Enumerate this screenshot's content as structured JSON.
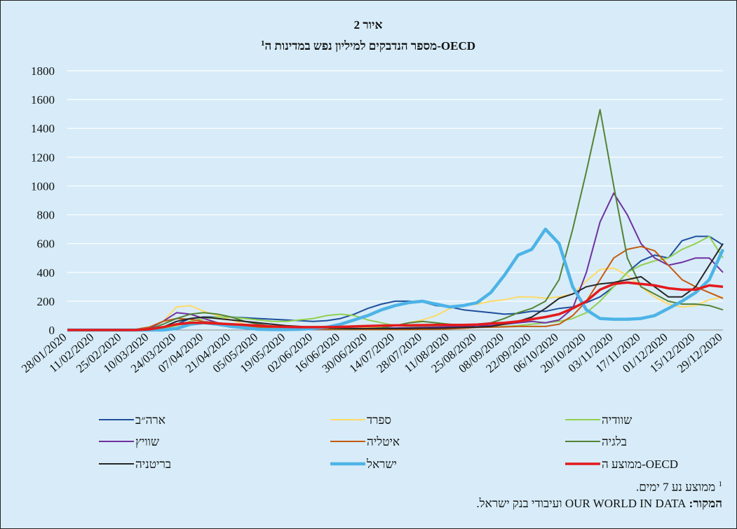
{
  "chart_data": {
    "type": "line",
    "title": "איור 2",
    "subtitle": "מספר הנדבקים למיליון נפש במדינות ה-OECD",
    "subtitle_note": "1",
    "footnote_marker": "1",
    "footnote": "ממוצע נע 7 ימים.",
    "source_label": "המקור:",
    "source_text": "OUR WORLD IN DATA ועיבודי בנק ישראל.",
    "categories": [
      "28/01/2020",
      null,
      "11/02/2020",
      null,
      "25/02/2020",
      null,
      "10/03/2020",
      null,
      "24/03/2020",
      null,
      "07/04/2020",
      null,
      "21/04/2020",
      null,
      "05/05/2020",
      null,
      "19/05/2020",
      null,
      "02/06/2020",
      null,
      "16/06/2020",
      null,
      "30/06/2020",
      null,
      "14/07/2020",
      null,
      "28/07/2020",
      null,
      "11/08/2020",
      null,
      "25/08/2020",
      null,
      "08/09/2020",
      null,
      "22/09/2020",
      null,
      "06/10/2020",
      null,
      "20/10/2020",
      null,
      "03/11/2020",
      null,
      "17/11/2020",
      null,
      "01/12/2020",
      null,
      "15/12/2020",
      null,
      "29/12/2020"
    ],
    "ylim": [
      0,
      1800
    ],
    "yticks": [
      0,
      200,
      400,
      600,
      800,
      1000,
      1200,
      1400,
      1600,
      1800
    ],
    "grid": true,
    "series": [
      {
        "name": "ארה״ב",
        "color": "#1f4e9c",
        "width": 2,
        "values": [
          0,
          0,
          0,
          0,
          0,
          0,
          0,
          10,
          40,
          80,
          90,
          90,
          90,
          85,
          80,
          75,
          70,
          65,
          60,
          65,
          80,
          110,
          150,
          180,
          200,
          200,
          195,
          170,
          160,
          140,
          130,
          120,
          110,
          115,
          130,
          130,
          150,
          160,
          190,
          230,
          300,
          400,
          480,
          520,
          500,
          620,
          650,
          650,
          590
        ]
      },
      {
        "name": "ספרד",
        "color": "#ffd966",
        "width": 2,
        "values": [
          0,
          0,
          0,
          0,
          0,
          0,
          10,
          60,
          160,
          170,
          130,
          100,
          70,
          40,
          25,
          15,
          10,
          8,
          7,
          7,
          8,
          10,
          15,
          20,
          30,
          50,
          70,
          100,
          150,
          170,
          180,
          200,
          210,
          230,
          230,
          220,
          230,
          250,
          340,
          420,
          430,
          380,
          300,
          230,
          180,
          160,
          170,
          210,
          230
        ]
      },
      {
        "name": "שוודיה",
        "color": "#92d050",
        "width": 2,
        "values": [
          0,
          0,
          0,
          0,
          0,
          0,
          0,
          10,
          30,
          60,
          80,
          90,
          90,
          80,
          70,
          60,
          60,
          70,
          80,
          100,
          110,
          100,
          70,
          50,
          30,
          25,
          25,
          25,
          25,
          20,
          20,
          20,
          25,
          30,
          40,
          50,
          60,
          80,
          120,
          200,
          300,
          400,
          450,
          480,
          500,
          560,
          600,
          650,
          500
        ]
      },
      {
        "name": "שוויץ",
        "color": "#7030a0",
        "width": 2,
        "values": [
          0,
          0,
          0,
          0,
          0,
          0,
          10,
          60,
          120,
          110,
          80,
          50,
          25,
          15,
          8,
          5,
          4,
          4,
          4,
          4,
          5,
          8,
          10,
          12,
          14,
          16,
          18,
          20,
          22,
          25,
          30,
          30,
          40,
          50,
          60,
          50,
          70,
          150,
          400,
          750,
          950,
          800,
          600,
          500,
          450,
          470,
          500,
          500,
          400
        ]
      },
      {
        "name": "איטליה",
        "color": "#c55a11",
        "width": 2,
        "values": [
          0,
          0,
          0,
          0,
          0,
          5,
          20,
          60,
          80,
          75,
          60,
          50,
          40,
          30,
          20,
          12,
          8,
          6,
          5,
          4,
          4,
          4,
          4,
          4,
          4,
          4,
          5,
          6,
          8,
          12,
          18,
          20,
          22,
          25,
          25,
          25,
          40,
          100,
          200,
          350,
          500,
          560,
          580,
          550,
          450,
          350,
          300,
          260,
          220
        ]
      },
      {
        "name": "בלגיה",
        "color": "#548235",
        "width": 2,
        "values": [
          0,
          0,
          0,
          0,
          0,
          0,
          5,
          40,
          80,
          110,
          120,
          110,
          90,
          60,
          40,
          25,
          20,
          20,
          15,
          10,
          8,
          8,
          10,
          15,
          30,
          50,
          60,
          50,
          40,
          35,
          40,
          50,
          80,
          120,
          150,
          200,
          350,
          700,
          1100,
          1530,
          1000,
          500,
          300,
          250,
          200,
          180,
          180,
          170,
          140
        ]
      },
      {
        "name": "בריטניה",
        "color": "#262626",
        "width": 2,
        "values": [
          0,
          0,
          0,
          0,
          0,
          0,
          5,
          20,
          60,
          80,
          90,
          80,
          70,
          60,
          50,
          40,
          30,
          25,
          20,
          15,
          12,
          10,
          10,
          10,
          10,
          10,
          12,
          12,
          15,
          18,
          20,
          25,
          40,
          60,
          90,
          150,
          220,
          250,
          300,
          320,
          330,
          350,
          370,
          300,
          230,
          230,
          300,
          450,
          600
        ]
      },
      {
        "name": "ישראל",
        "color": "#4db3e6",
        "width": 4.5,
        "values": [
          0,
          0,
          0,
          0,
          0,
          0,
          0,
          0,
          10,
          40,
          50,
          40,
          25,
          15,
          5,
          3,
          3,
          5,
          10,
          20,
          40,
          70,
          100,
          140,
          170,
          190,
          200,
          180,
          160,
          170,
          190,
          260,
          380,
          520,
          560,
          700,
          600,
          300,
          140,
          80,
          75,
          75,
          80,
          100,
          150,
          200,
          260,
          350,
          560
        ]
      },
      {
        "name": "ממוצע ה-OECD",
        "color": "#e31a1c",
        "width": 3.5,
        "values": [
          0,
          0,
          0,
          0,
          0,
          0,
          5,
          20,
          40,
          50,
          50,
          45,
          40,
          35,
          30,
          25,
          22,
          20,
          20,
          20,
          22,
          25,
          28,
          30,
          32,
          33,
          34,
          35,
          35,
          35,
          38,
          45,
          50,
          60,
          75,
          90,
          110,
          150,
          200,
          280,
          320,
          330,
          320,
          310,
          290,
          280,
          280,
          310,
          300
        ]
      }
    ]
  }
}
